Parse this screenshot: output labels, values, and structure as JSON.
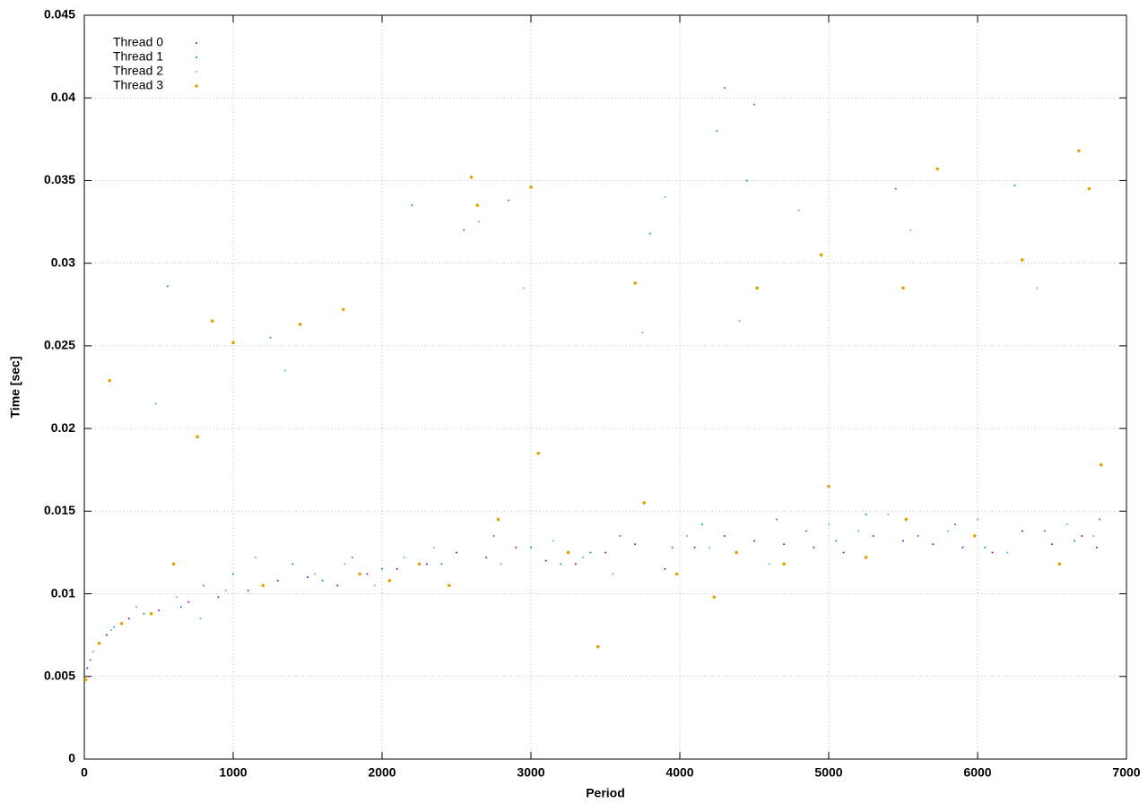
{
  "chart_data": {
    "type": "scatter",
    "x_label": "Period",
    "y_label": "Time [sec]",
    "xlim": [
      0,
      7000
    ],
    "xticks": [
      0,
      1000,
      2000,
      3000,
      4000,
      5000,
      6000,
      7000
    ],
    "ylim": [
      0,
      0.045
    ],
    "yticks": [
      0,
      0.005,
      0.01,
      0.015,
      0.02,
      0.025,
      0.03,
      0.035,
      0.04,
      0.045
    ],
    "grid": true,
    "legend": "top-left",
    "series": [
      {
        "name": "Thread 0",
        "color": "#9400d3",
        "x": [
          20,
          150,
          300,
          500,
          700,
          900,
          1100,
          1300,
          1500,
          1700,
          1900,
          2100,
          2300,
          2500,
          2700,
          2900,
          3100,
          3300,
          3500,
          3700,
          3900,
          4100,
          4300,
          4500,
          4700,
          4900,
          5100,
          5300,
          5500,
          5700,
          5900,
          6100,
          6300,
          6500,
          6700,
          6800
        ],
        "values": [
          0.0055,
          0.0075,
          0.0085,
          0.009,
          0.0095,
          0.0098,
          0.0102,
          0.0108,
          0.011,
          0.0105,
          0.0112,
          0.0115,
          0.0118,
          0.0125,
          0.0122,
          0.0128,
          0.012,
          0.0118,
          0.0125,
          0.013,
          0.0115,
          0.0128,
          0.0135,
          0.0132,
          0.013,
          0.0128,
          0.0125,
          0.0135,
          0.0132,
          0.013,
          0.0128,
          0.0125,
          0.0138,
          0.013,
          0.0135,
          0.0128
        ]
      },
      {
        "name": "Thread 1",
        "color": "#009e73",
        "x": [
          40,
          200,
          400,
          560,
          650,
          800,
          1000,
          1250,
          1400,
          1600,
          1800,
          2000,
          2200,
          2400,
          2550,
          2750,
          2850,
          3000,
          3200,
          3400,
          3600,
          3800,
          3950,
          4150,
          4250,
          4300,
          4450,
          4500,
          4650,
          4850,
          5050,
          5250,
          5450,
          5600,
          5850,
          6050,
          6250,
          6450,
          6650,
          6820
        ],
        "values": [
          0.006,
          0.008,
          0.0088,
          0.0286,
          0.0092,
          0.0105,
          0.0112,
          0.0255,
          0.0118,
          0.0108,
          0.0122,
          0.0115,
          0.0335,
          0.0118,
          0.032,
          0.0135,
          0.0338,
          0.0128,
          0.0118,
          0.0125,
          0.0135,
          0.0318,
          0.0128,
          0.0142,
          0.038,
          0.0406,
          0.035,
          0.0396,
          0.0145,
          0.0138,
          0.0132,
          0.0148,
          0.0345,
          0.0135,
          0.0142,
          0.0128,
          0.0347,
          0.0138,
          0.0132,
          0.0145
        ]
      },
      {
        "name": "Thread 2",
        "color": "#56b4e9",
        "x": [
          60,
          180,
          350,
          480,
          620,
          780,
          950,
          1150,
          1350,
          1550,
          1750,
          1950,
          2150,
          2350,
          2650,
          2800,
          2950,
          3150,
          3350,
          3550,
          3750,
          3900,
          4050,
          4200,
          4400,
          4600,
          4800,
          5000,
          5200,
          5400,
          5550,
          5800,
          6000,
          6200,
          6400,
          6600,
          6780
        ],
        "values": [
          0.0065,
          0.0078,
          0.0092,
          0.0215,
          0.0098,
          0.0085,
          0.0102,
          0.0122,
          0.0235,
          0.0112,
          0.0118,
          0.0105,
          0.0122,
          0.0128,
          0.0325,
          0.0118,
          0.0285,
          0.0132,
          0.0122,
          0.0112,
          0.0258,
          0.034,
          0.0135,
          0.0128,
          0.0265,
          0.0118,
          0.0332,
          0.0142,
          0.0138,
          0.0148,
          0.032,
          0.0138,
          0.0145,
          0.0125,
          0.0285,
          0.0142,
          0.0135
        ]
      },
      {
        "name": "Thread 3",
        "color": "#e69f00",
        "x": [
          10,
          100,
          170,
          250,
          450,
          600,
          760,
          860,
          1000,
          1200,
          1450,
          1740,
          1850,
          2050,
          2250,
          2450,
          2600,
          2640,
          2780,
          3000,
          3050,
          3250,
          3450,
          3700,
          3760,
          3980,
          4230,
          4380,
          4520,
          4700,
          4950,
          5000,
          5250,
          5500,
          5520,
          5730,
          5980,
          6300,
          6550,
          6680,
          6750,
          6830
        ],
        "values": [
          0.0048,
          0.007,
          0.0229,
          0.0082,
          0.0088,
          0.0118,
          0.0195,
          0.0265,
          0.0252,
          0.0105,
          0.0263,
          0.0272,
          0.0112,
          0.0108,
          0.0118,
          0.0105,
          0.0352,
          0.0335,
          0.0145,
          0.0346,
          0.0185,
          0.0125,
          0.0068,
          0.0288,
          0.0155,
          0.0112,
          0.0098,
          0.0125,
          0.0285,
          0.0118,
          0.0305,
          0.0165,
          0.0122,
          0.0285,
          0.0145,
          0.0357,
          0.0135,
          0.0302,
          0.0118,
          0.0368,
          0.0345,
          0.0178
        ]
      }
    ]
  }
}
